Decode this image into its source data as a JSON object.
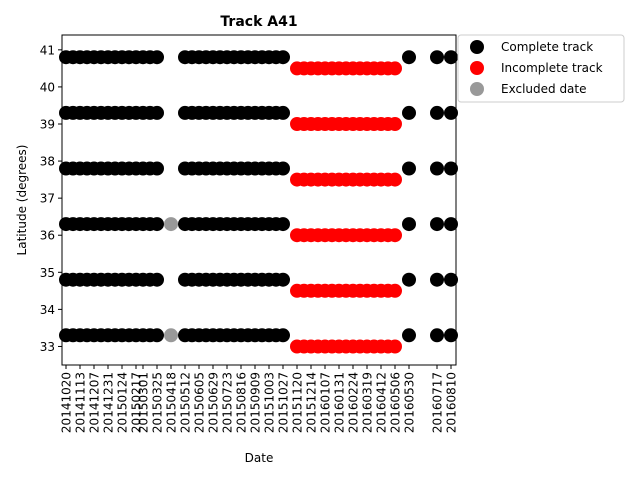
{
  "chart_data": {
    "type": "scatter",
    "title": "Track A41",
    "xlabel": "Date",
    "ylabel": "Latitude (degrees)",
    "ylim": [
      32.5,
      41.4
    ],
    "yticks": [
      33,
      34,
      35,
      36,
      37,
      38,
      39,
      40,
      41
    ],
    "grid": false,
    "legend_position": "outside-top-right",
    "colors": {
      "complete": "#000000",
      "incomplete": "#ff0000",
      "excluded": "#999999"
    },
    "x_axis_kind": "date",
    "dates": [
      "20141020",
      "20141101",
      "20141113",
      "20141125",
      "20141207",
      "20141219",
      "20141231",
      "20150112",
      "20150124",
      "20150205",
      "20150217",
      "20150301",
      "20150313",
      "20150325",
      "20150406",
      "20150418",
      "20150430",
      "20150512",
      "20150524",
      "20150605",
      "20150617",
      "20150629",
      "20150711",
      "20150723",
      "20150804",
      "20150816",
      "20150828",
      "20150909",
      "20150921",
      "20151003",
      "20151015",
      "20151027",
      "20151108",
      "20151120",
      "20151202",
      "20151214",
      "20151226",
      "20160107",
      "20160119",
      "20160131",
      "20160212",
      "20160224",
      "20160307",
      "20160319",
      "20160331",
      "20160412",
      "20160424",
      "20160506",
      "20160518",
      "20160530",
      "20160611",
      "20160623",
      "20160705",
      "20160717",
      "20160729",
      "20160810"
    ],
    "xtick_labels": [
      "20141020",
      "20141113",
      "20141207",
      "20141231",
      "20150124",
      "20150217",
      "20150301",
      "20150325",
      "20150418",
      "20150512",
      "20150605",
      "20150629",
      "20150723",
      "20150816",
      "20150909",
      "20151003",
      "20151027",
      "20151120",
      "20151214",
      "20160107",
      "20160131",
      "20160224",
      "20160319",
      "20160412",
      "20160506",
      "20160530",
      "20160717",
      "20160810"
    ],
    "xtick_label_colors": [
      "#000000",
      "#000000",
      "#000000",
      "#000000",
      "#000000",
      "#000000",
      "#000000",
      "#000000",
      "#ff0000",
      "#000000",
      "#000000",
      "#000000",
      "#000000",
      "#000000",
      "#000000",
      "#000000",
      "#000000",
      "#ff0000",
      "#ff0000",
      "#ff0000",
      "#ff0000",
      "#ff0000",
      "#ff0000",
      "#ff0000",
      "#ff0000",
      "#000000",
      "#000000",
      "#000000"
    ],
    "series": [
      {
        "name": "Complete track",
        "color": "#000000",
        "dates": [
          "20141020",
          "20141101",
          "20141113",
          "20141125",
          "20141207",
          "20141219",
          "20141231",
          "20150112",
          "20150124",
          "20150205",
          "20150217",
          "20150301",
          "20150313",
          "20150325",
          "20150512",
          "20150524",
          "20150605",
          "20150617",
          "20150629",
          "20150711",
          "20150723",
          "20150804",
          "20150816",
          "20150828",
          "20150909",
          "20150921",
          "20151003",
          "20151015",
          "20151027",
          "20160530",
          "20160717",
          "20160810"
        ],
        "latitudes": [
          33.3,
          34.8,
          36.3,
          37.8,
          39.3,
          40.8
        ]
      },
      {
        "name": "Incomplete track",
        "color": "#ff0000",
        "dates": [
          "20151120",
          "20151202",
          "20151214",
          "20151226",
          "20160107",
          "20160119",
          "20160131",
          "20160212",
          "20160224",
          "20160307",
          "20160319",
          "20160331",
          "20160412",
          "20160424",
          "20160506"
        ],
        "latitudes": [
          33.0,
          34.5,
          36.0,
          37.5,
          39.0,
          40.5
        ]
      },
      {
        "name": "Excluded date",
        "color": "#999999",
        "dates": [
          "20150418"
        ],
        "latitudes": [
          33.3,
          36.3
        ]
      }
    ]
  }
}
